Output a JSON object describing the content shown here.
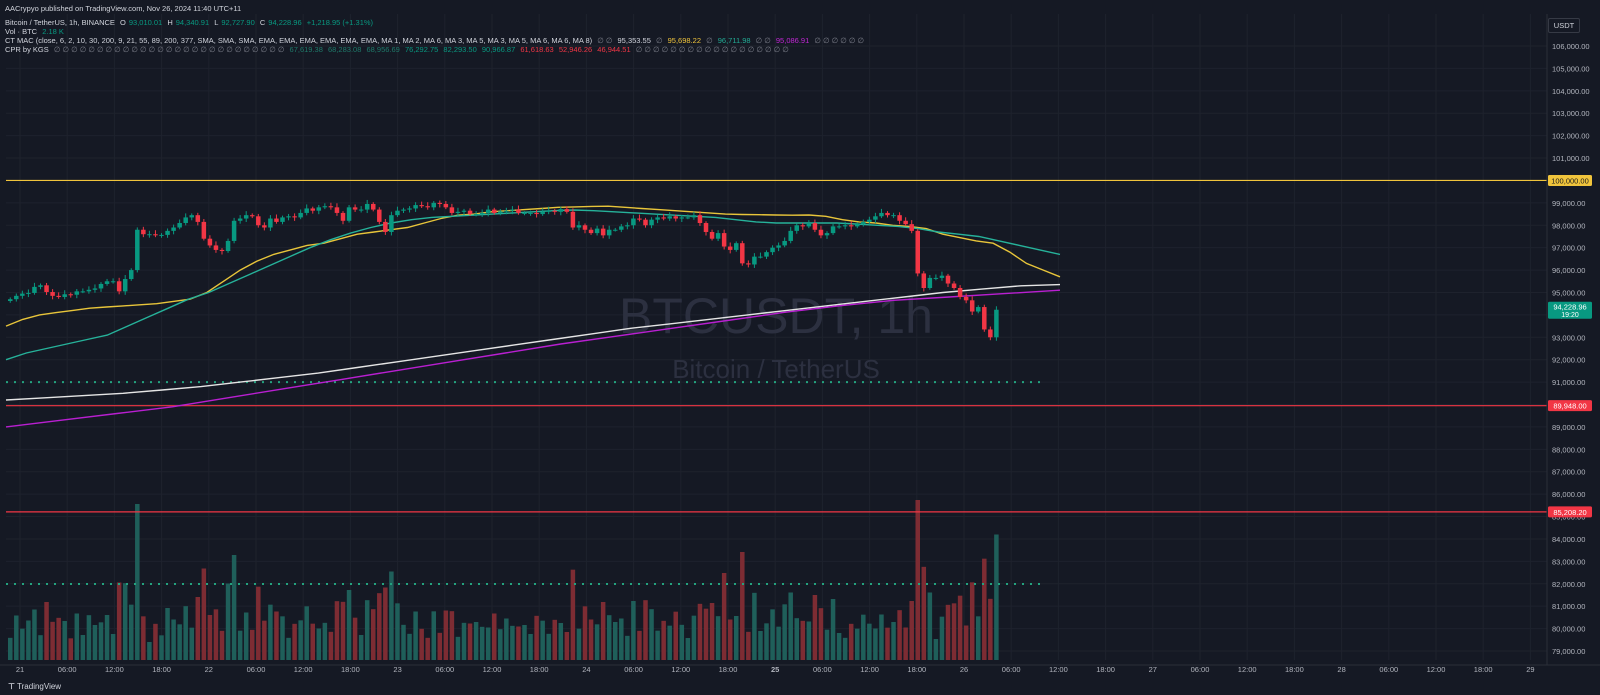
{
  "published_line": "AACrypyo published on TradingView.com, Nov 26, 2024 11:40 UTC+11",
  "legend": {
    "symbol": "Bitcoin / TetherUS, 1h, BINANCE",
    "open_label": "O",
    "open": "93,010.01",
    "high_label": "H",
    "high": "94,340.91",
    "low_label": "L",
    "low": "92,727.90",
    "close_label": "C",
    "close": "94,228.96",
    "change": "+1,218.95 (+1.31%)",
    "vol_label": "Vol · BTC",
    "vol_value": "2.18 K",
    "mac_label": "CT MAC (close, 6, 2, 10, 30, 200, 9, 21, 55, 89, 200, 377, SMA, SMA, SMA, EMA, EMA, EMA, EMA, EMA, EMA, MA 1, MA 2, MA 6, MA 3, MA 5, MA 3, MA 5, MA 6, MA 6, MA 8)",
    "mac_empty_a": "∅ ∅",
    "mac_v1": "95,353.55",
    "mac_empty_b": "∅",
    "mac_v2": "95,698.22",
    "mac_empty_c": "∅",
    "mac_v3": "96,711.98",
    "mac_empty_d": "∅ ∅",
    "mac_v4": "95,086.91",
    "mac_empty_e": "∅ ∅ ∅ ∅ ∅ ∅",
    "cpr_label": "CPR by KGS",
    "cpr_empty_a": "∅ ∅ ∅ ∅ ∅ ∅ ∅ ∅ ∅ ∅ ∅ ∅ ∅ ∅ ∅ ∅ ∅ ∅ ∅ ∅ ∅ ∅ ∅ ∅ ∅ ∅ ∅",
    "cpr_v1": "67,619.38",
    "cpr_v2": "68,283.08",
    "cpr_v3": "68,956.69",
    "cpr_v4": "76,292.75",
    "cpr_v5": "82,293.50",
    "cpr_v6": "90,966.87",
    "cpr_v7": "61,618.63",
    "cpr_v8": "52,946.26",
    "cpr_v9": "46,944.51",
    "cpr_empty_b": "∅ ∅ ∅ ∅ ∅ ∅ ∅ ∅ ∅ ∅ ∅ ∅ ∅ ∅ ∅ ∅ ∅ ∅"
  },
  "watermark": {
    "ticker": "BTCUSDT, 1h",
    "name": "Bitcoin / TetherUS"
  },
  "brand": "TradingView",
  "currency": "USDT",
  "colors": {
    "background": "#151924",
    "grid": "#1e222d",
    "up": "#089981",
    "down": "#f23645",
    "vol_up": "#1f5f5a",
    "vol_down": "#7d2c33",
    "ema_fast": "#e8c53a",
    "ema_mid": "#26b29a",
    "ema_slow": "#e5e5e5",
    "ema_200": "#b91fd1",
    "level_yellow": "#f0c43c",
    "level_red": "#f23645",
    "dotted": "#24a37f",
    "axis_text": "#b2b5be"
  },
  "chart_data": {
    "type": "candlestick",
    "symbol": "BTCUSDT, 1h",
    "price_axis": {
      "min": 79000,
      "max": 106000,
      "step": 1000,
      "ticks": [
        "79,000.00",
        "80,000.00",
        "81,000.00",
        "82,000.00",
        "83,000.00",
        "84,000.00",
        "85,000.00",
        "86,000.00",
        "87,000.00",
        "88,000.00",
        "89,000.00",
        "90,000.00",
        "91,000.00",
        "92,000.00",
        "93,000.00",
        "94,000.00",
        "95,000.00",
        "96,000.00",
        "97,000.00",
        "98,000.00",
        "99,000.00",
        "100,000.00",
        "101,000.00",
        "102,000.00",
        "103,000.00",
        "104,000.00",
        "105,000.00",
        "106,000.00"
      ]
    },
    "time_axis": {
      "labels": [
        {
          "label": "21",
          "bold": false
        },
        {
          "label": "06:00",
          "bold": false
        },
        {
          "label": "12:00",
          "bold": false
        },
        {
          "label": "18:00",
          "bold": false
        },
        {
          "label": "22",
          "bold": false
        },
        {
          "label": "06:00",
          "bold": false
        },
        {
          "label": "12:00",
          "bold": false
        },
        {
          "label": "18:00",
          "bold": false
        },
        {
          "label": "23",
          "bold": false
        },
        {
          "label": "06:00",
          "bold": false
        },
        {
          "label": "12:00",
          "bold": false
        },
        {
          "label": "18:00",
          "bold": false
        },
        {
          "label": "24",
          "bold": false
        },
        {
          "label": "06:00",
          "bold": false
        },
        {
          "label": "12:00",
          "bold": false
        },
        {
          "label": "18:00",
          "bold": false
        },
        {
          "label": "25",
          "bold": true
        },
        {
          "label": "06:00",
          "bold": false
        },
        {
          "label": "12:00",
          "bold": false
        },
        {
          "label": "18:00",
          "bold": false
        },
        {
          "label": "26",
          "bold": false
        },
        {
          "label": "06:00",
          "bold": false
        },
        {
          "label": "12:00",
          "bold": false
        },
        {
          "label": "18:00",
          "bold": false
        },
        {
          "label": "27",
          "bold": false
        },
        {
          "label": "06:00",
          "bold": false
        },
        {
          "label": "12:00",
          "bold": false
        },
        {
          "label": "18:00",
          "bold": false
        },
        {
          "label": "28",
          "bold": false
        },
        {
          "label": "06:00",
          "bold": false
        },
        {
          "label": "12:00",
          "bold": false
        },
        {
          "label": "18:00",
          "bold": false
        },
        {
          "label": "29",
          "bold": false
        }
      ]
    },
    "candles_hourly_close": [
      94700,
      94850,
      94950,
      94980,
      95250,
      95320,
      95020,
      94850,
      94800,
      94920,
      94900,
      95050,
      95050,
      95120,
      95180,
      95380,
      95500,
      95500,
      95050,
      95600,
      96000,
      97800,
      97600,
      97600,
      97550,
      97570,
      97750,
      97900,
      98100,
      98350,
      98450,
      98150,
      97400,
      97100,
      96900,
      96850,
      97300,
      98200,
      98300,
      98450,
      98400,
      98000,
      97900,
      98300,
      98150,
      98350,
      98400,
      98350,
      98550,
      98750,
      98650,
      98800,
      98850,
      98800,
      98550,
      98200,
      98800,
      98700,
      98700,
      98950,
      98700,
      98150,
      97700,
      98450,
      98650,
      98700,
      98750,
      98900,
      98850,
      98800,
      99000,
      98950,
      98800,
      98550,
      98600,
      98650,
      98500,
      98500,
      98550,
      98700,
      98550,
      98620,
      98650,
      98700,
      98550,
      98550,
      98550,
      98500,
      98600,
      98650,
      98600,
      98720,
      98600,
      97900,
      98000,
      97800,
      97650,
      97850,
      97550,
      97800,
      97800,
      97950,
      98000,
      98300,
      98250,
      98000,
      98250,
      98350,
      98300,
      98400,
      98300,
      98350,
      98350,
      98450,
      98100,
      97700,
      97400,
      97650,
      97050,
      96900,
      97200,
      96300,
      96250,
      96600,
      96600,
      96800,
      97000,
      97100,
      97300,
      97750,
      98000,
      97950,
      98100,
      97800,
      97550,
      97650,
      97950,
      97950,
      98000,
      97950,
      98050,
      98150,
      98250,
      98400,
      98550,
      98450,
      98450,
      98200,
      98050,
      97750,
      95850,
      95200,
      95650,
      95650,
      95750,
      95400,
      95200,
      94800,
      94650,
      94150,
      94350,
      93350,
      93000,
      94230
    ],
    "horizontal_levels": [
      {
        "price": 100000,
        "label": "100,000.00",
        "color": "yellow"
      },
      {
        "price": 89948,
        "label": "89,948.00",
        "color": "red"
      },
      {
        "price": 85208.2,
        "label": "85,208.20",
        "color": "red"
      },
      {
        "price": 91000,
        "label": "",
        "color": "dotted"
      }
    ],
    "last_price": {
      "value": 94228.96,
      "label": "94,228.96",
      "countdown": "19:20"
    },
    "moving_averages": [
      {
        "color": "ema_fast",
        "values": [
          93500,
          93800,
          94000,
          94100,
          94200,
          94300,
          94350,
          94400,
          94450,
          94500,
          94600,
          94700,
          95000,
          95500,
          96000,
          96400,
          96700,
          96900,
          97100,
          97200,
          97400,
          97600,
          97700,
          97800,
          97900,
          98100,
          98300,
          98450,
          98500,
          98600,
          98650,
          98700,
          98750,
          98800,
          98820,
          98840,
          98850,
          98800,
          98750,
          98700,
          98650,
          98600,
          98550,
          98500,
          98480,
          98470,
          98460,
          98450,
          98460,
          98400,
          98250,
          98150,
          98100,
          98000,
          97950,
          97850,
          97600,
          97450,
          97300,
          97200,
          96800,
          96300,
          96000,
          95700
        ]
      },
      {
        "color": "ema_mid",
        "values": [
          92000,
          92300,
          92500,
          92700,
          92900,
          93100,
          93500,
          93900,
          94300,
          94700,
          95000,
          95400,
          95800,
          96200,
          96600,
          97000,
          97350,
          97650,
          97900,
          98100,
          98250,
          98350,
          98400,
          98450,
          98500,
          98550,
          98600,
          98650,
          98680,
          98650,
          98600,
          98550,
          98500,
          98450,
          98400,
          98350,
          98250,
          98150,
          98100,
          98100,
          98100,
          98100,
          98050,
          98000,
          97950,
          97850,
          97700,
          97600,
          97500,
          97300,
          97100,
          96900,
          96700
        ]
      },
      {
        "color": "ema_slow",
        "values": [
          90200,
          90300,
          90400,
          90500,
          90650,
          90800,
          91000,
          91200,
          91400,
          91650,
          91900,
          92150,
          92400,
          92650,
          92900,
          93150,
          93400,
          93600,
          93800,
          94000,
          94200,
          94400,
          94600,
          94800,
          95000,
          95150,
          95300,
          95350
        ]
      },
      {
        "color": "ema_200",
        "values": [
          89000,
          89300,
          89600,
          89900,
          90300,
          90700,
          91100,
          91500,
          91900,
          92300,
          92700,
          93050,
          93400,
          93750,
          94100,
          94400,
          94650,
          94800,
          94950,
          95100
        ]
      }
    ],
    "volume": {
      "dotted_level": 83.0
    }
  }
}
